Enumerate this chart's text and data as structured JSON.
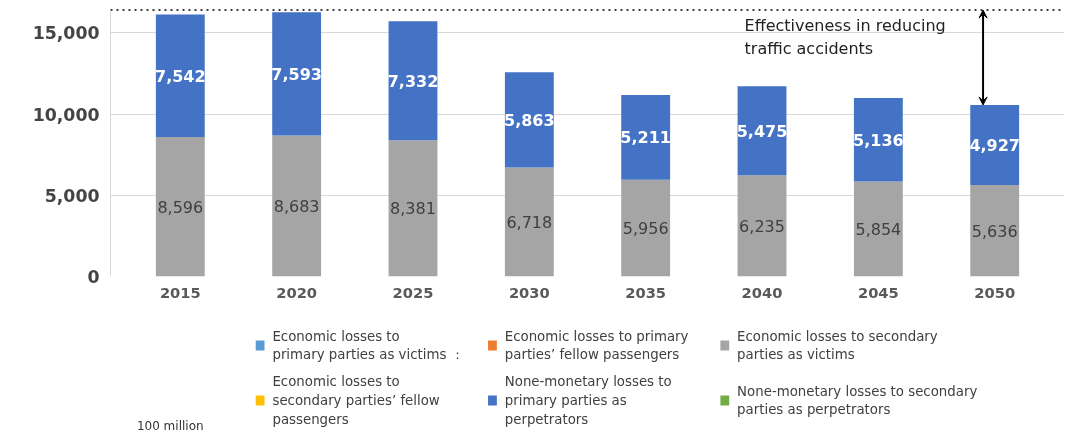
{
  "chart_data": {
    "type": "bar",
    "stacked": true,
    "categories": [
      "2015",
      "2020",
      "2025",
      "2030",
      "2035",
      "2040",
      "2045",
      "2050"
    ],
    "series": [
      {
        "name": "Economic losses to\nprimary parties as victims ：",
        "color": "#5b9bd5",
        "values": [
          null,
          null,
          null,
          null,
          null,
          null,
          null,
          null
        ]
      },
      {
        "name": "Economic losses to primary\nparties’ fellow passengers",
        "color": "#ed7d31",
        "values": [
          null,
          null,
          null,
          null,
          null,
          null,
          null,
          null
        ]
      },
      {
        "name": "Economic losses to secondary\nparties as victims",
        "color": "#a5a5a5",
        "values": [
          8596,
          8683,
          8381,
          6718,
          5956,
          6235,
          5854,
          5636
        ],
        "value_labels": [
          "8,596",
          "8,683",
          "8,381",
          "6,718",
          "5,956",
          "6,235",
          "5,854",
          "5,636"
        ]
      },
      {
        "name": "Economic losses to\nsecondary parties’ fellow\npassengers",
        "color": "#ffc000",
        "values": [
          null,
          null,
          null,
          null,
          null,
          null,
          null,
          null
        ]
      },
      {
        "name": "None-monetary losses to\nprimary parties as\nperpetrators",
        "color": "#4472c4",
        "values": [
          7542,
          7593,
          7332,
          5863,
          5211,
          5475,
          5136,
          4927
        ],
        "value_labels": [
          "7,542",
          "7,593",
          "7,332",
          "5,863",
          "5,211",
          "5,475",
          "5,136",
          "4,927"
        ]
      },
      {
        "name": "None-monetary losses to secondary\nparties as perpetrators",
        "color": "#70ad47",
        "values": [
          null,
          null,
          null,
          null,
          null,
          null,
          null,
          null
        ]
      }
    ],
    "ylim": [
      0,
      16500
    ],
    "yticks": [
      0,
      {
        "value": 5000,
        "label": "5,000"
      },
      {
        "value": 10000,
        "label": "10,000"
      },
      {
        "value": 15000,
        "label": "15,000"
      }
    ],
    "grid": "y",
    "legend": "bottom",
    "ref_lines": [
      {
        "axis": "y",
        "value": 16400,
        "color": "#000000",
        "line_style": "dotted"
      }
    ],
    "annotations": [
      "Effectiveness in reducing\ntraffic accidents",
      "100 million"
    ]
  }
}
